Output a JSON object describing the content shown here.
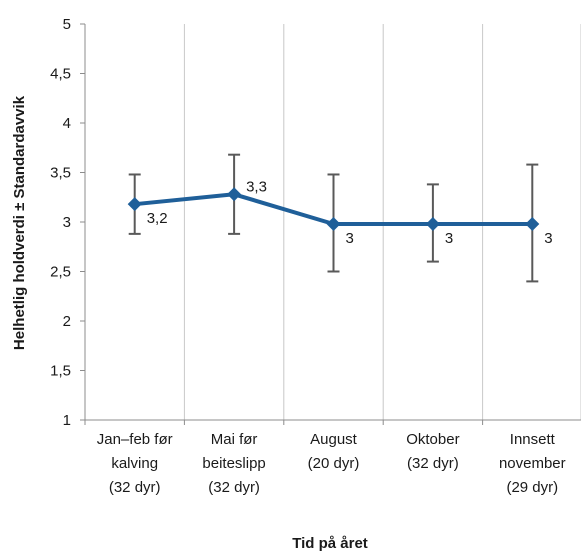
{
  "chart_data": {
    "type": "line",
    "ylabel": "Helhetlig holdverdi  ±  Standardavvik",
    "xlabel": "Tid på året",
    "ylim": [
      1,
      5
    ],
    "yticks": [
      "1",
      "1,5",
      "2",
      "2,5",
      "3",
      "3,5",
      "4",
      "4,5",
      "5"
    ],
    "grid": "vertical",
    "categories": [
      [
        "Jan–feb før",
        "kalving",
        "(32 dyr)"
      ],
      [
        "Mai før",
        "beiteslipp",
        "(32 dyr)"
      ],
      [
        "August",
        "(20 dyr)"
      ],
      [
        "Oktober",
        "(32 dyr)"
      ],
      [
        "Innsett",
        "november",
        "(29 dyr)"
      ]
    ],
    "series": [
      {
        "values": [
          3.18,
          3.28,
          2.98,
          2.98,
          2.98
        ],
        "data_labels": [
          "3,2",
          "3,3",
          "3",
          "3",
          "3"
        ],
        "error_low": [
          2.88,
          2.88,
          2.5,
          2.6,
          2.4
        ],
        "error_high": [
          3.48,
          3.68,
          3.48,
          3.38,
          3.58
        ],
        "color": "#1f5f99"
      }
    ]
  }
}
